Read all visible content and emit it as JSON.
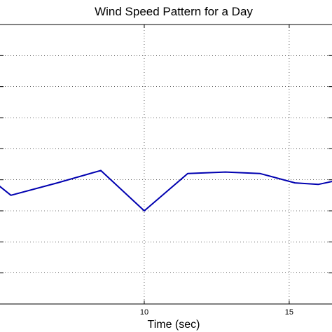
{
  "chart_data": {
    "type": "line",
    "title": "Wind Speed Pattern for a Day",
    "xlabel": "Time (sec)",
    "ylabel": "",
    "xlim": [
      5,
      16.5
    ],
    "ylim": [
      0,
      9
    ],
    "xticks": [
      10,
      15
    ],
    "xtick_labels": [
      "10",
      "15"
    ],
    "yticks": [
      1,
      2,
      3,
      4,
      5,
      6,
      7,
      8
    ],
    "grid": true,
    "series": [
      {
        "color": "#0000b0",
        "x": [
          5,
          5.4,
          7,
          8.5,
          10,
          11.5,
          12.8,
          14,
          15.2,
          16,
          16.5
        ],
        "y": [
          3.8,
          3.5,
          3.9,
          4.3,
          3.0,
          4.2,
          4.25,
          4.2,
          3.9,
          3.85,
          3.95
        ]
      }
    ]
  }
}
